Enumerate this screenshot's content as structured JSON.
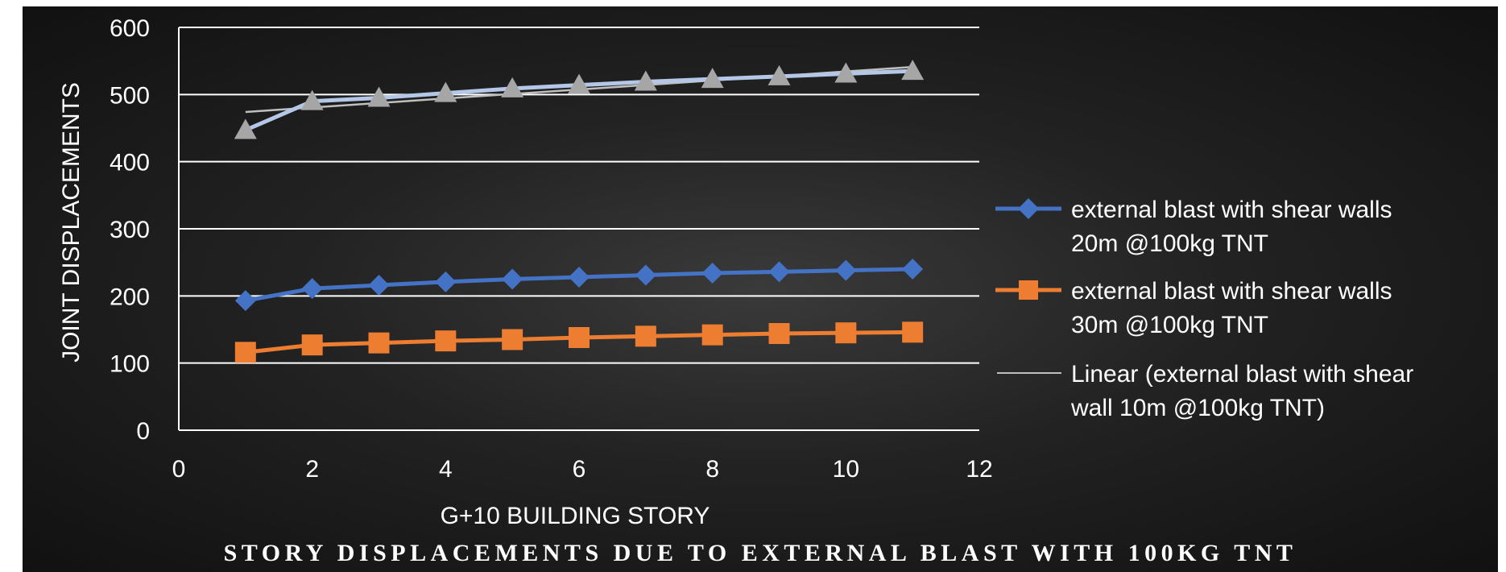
{
  "chart_data": {
    "type": "line",
    "title": "STORY DISPLACEMENTS DUE TO EXTERNAL BLAST WITH 100KG TNT",
    "xlabel": "G+10 BUILDING STORY",
    "ylabel": "JOINT DISPLACEMENTS",
    "xlim": [
      0,
      12
    ],
    "ylim": [
      0,
      600
    ],
    "x_ticks": [
      "0",
      "2",
      "4",
      "6",
      "8",
      "10",
      "12"
    ],
    "y_ticks": [
      "0",
      "100",
      "200",
      "300",
      "400",
      "500",
      "600"
    ],
    "grid": "horizontal",
    "legend_position": "right",
    "x": [
      1,
      2,
      3,
      4,
      5,
      6,
      7,
      8,
      9,
      10,
      11
    ],
    "series": [
      {
        "name": "",
        "color": "#a6a6a6",
        "line_color": "#b4c7e7",
        "marker": "triangle",
        "values": [
          447,
          490,
          495,
          502,
          509,
          514,
          519,
          523,
          527,
          531,
          535
        ]
      },
      {
        "name": "external blast with shear walls 20m @100kg TNT",
        "legend_lines": [
          "external blast with shear walls",
          "20m @100kg TNT"
        ],
        "color": "#4472c4",
        "marker": "diamond",
        "values": [
          193,
          211,
          216,
          221,
          225,
          228,
          231,
          234,
          236,
          238,
          240
        ]
      },
      {
        "name": "external blast with shear walls 30m @100kg TNT",
        "legend_lines": [
          "external blast with shear walls",
          "30m @100kg TNT"
        ],
        "color": "#ed7d31",
        "marker": "square",
        "values": [
          116,
          127,
          130,
          133,
          135,
          138,
          140,
          142,
          144,
          145,
          146
        ]
      }
    ],
    "trendline": {
      "name": "Linear (external blast with shear wall 10m @100kg TNT)",
      "legend_lines": [
        "Linear (external blast with shear",
        "wall 10m @100kg TNT)"
      ],
      "color": "#bfbfbf",
      "type": "linear",
      "values_at_x_ends": [
        474,
        541
      ]
    }
  }
}
